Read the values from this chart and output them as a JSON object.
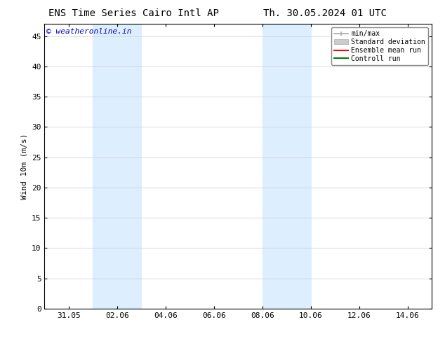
{
  "title_left": "ENS Time Series Cairo Intl AP",
  "title_right": "Th. 30.05.2024 01 UTC",
  "ylabel": "Wind 10m (m/s)",
  "watermark": "© weatheronline.in",
  "watermark_color": "#0000cc",
  "ylim": [
    0,
    47
  ],
  "yticks": [
    0,
    5,
    10,
    15,
    20,
    25,
    30,
    35,
    40,
    45
  ],
  "bg_color": "#ffffff",
  "plot_bg_color": "#ffffff",
  "shaded_bands": [
    {
      "xstart": "2024-06-01",
      "xend": "2024-06-03",
      "color": "#ddeeff"
    },
    {
      "xstart": "2024-06-08",
      "xend": "2024-06-10",
      "color": "#ddeeff"
    }
  ],
  "xstart_date": "2024-05-30",
  "xend_date": "2024-06-15",
  "xtick_dates": [
    "2024-05-31",
    "2024-06-02",
    "2024-06-04",
    "2024-06-06",
    "2024-06-08",
    "2024-06-10",
    "2024-06-12",
    "2024-06-14"
  ],
  "xtick_labels": [
    "31.05",
    "02.06",
    "04.06",
    "06.06",
    "08.06",
    "10.06",
    "12.06",
    "14.06"
  ],
  "legend_items": [
    {
      "label": "min/max",
      "color": "#aaaaaa",
      "lw": 1.2
    },
    {
      "label": "Standard deviation",
      "color": "#cccccc",
      "lw": 6
    },
    {
      "label": "Ensemble mean run",
      "color": "#ff0000",
      "lw": 1.5
    },
    {
      "label": "Controll run",
      "color": "#008000",
      "lw": 1.5
    }
  ],
  "font_family": "monospace",
  "title_fontsize": 10,
  "axis_fontsize": 8,
  "watermark_fontsize": 8,
  "grid_color": "#cccccc",
  "border_color": "#000000"
}
